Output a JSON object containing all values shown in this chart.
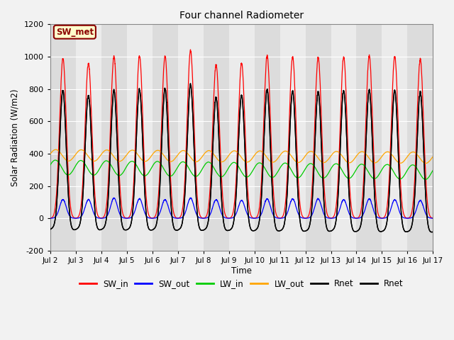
{
  "title": "Four channel Radiometer",
  "ylabel": "Solar Radiation (W/m2)",
  "xlabel": "Time",
  "ylim": [
    -200,
    1200
  ],
  "xlim": [
    0,
    15
  ],
  "xtick_labels": [
    "Jul 2",
    "Jul 3",
    "Jul 4",
    "Jul 5",
    "Jul 6",
    "Jul 7",
    "Jul 8",
    "Jul 9",
    "Jul 10",
    "Jul 11",
    "Jul 12",
    "Jul 13",
    "Jul 14",
    "Jul 15",
    "Jul 16",
    "Jul 17"
  ],
  "xtick_positions": [
    0,
    1,
    2,
    3,
    4,
    5,
    6,
    7,
    8,
    9,
    10,
    11,
    12,
    13,
    14,
    15
  ],
  "ytick_labels": [
    "-200",
    "0",
    "200",
    "400",
    "600",
    "800",
    "1000",
    "1200"
  ],
  "ytick_positions": [
    -200,
    0,
    200,
    400,
    600,
    800,
    1000,
    1200
  ],
  "fig_bg_color": "#f2f2f2",
  "plot_bg_color": "#f2f2f2",
  "band_dark": "#dcdcdc",
  "band_light": "#ebebeb",
  "legend_label": "SW_met",
  "legend_text_color": "#8B0000",
  "legend_bg": "#ffffcc",
  "legend_border": "#8B0000",
  "SW_in_color": "#FF0000",
  "SW_out_color": "#0000FF",
  "LW_in_color": "#00CC00",
  "LW_out_color": "#FFA500",
  "Rnet_color": "#000000",
  "n_days": 15,
  "pts_per_day": 480,
  "LW_in_base": 315,
  "LW_in_amp": 45,
  "LW_out_base": 390,
  "LW_out_amp": 35
}
